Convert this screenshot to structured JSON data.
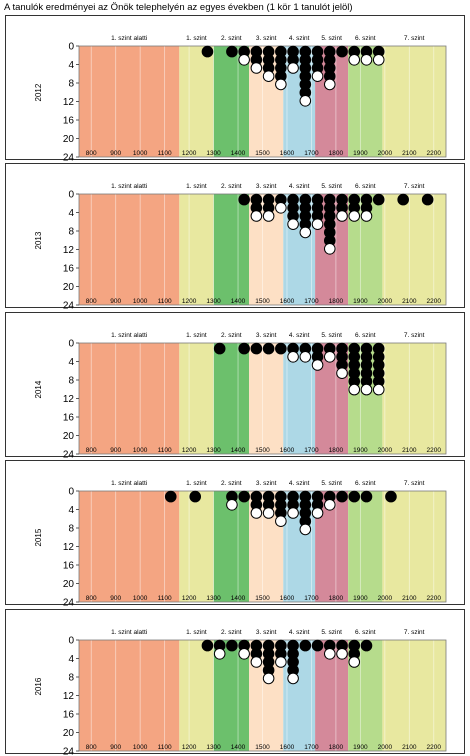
{
  "title": "A tanulók eredményei az Önök telephelyén az egyes években (1 kör 1 tanulót jelöl)",
  "chart_data": [
    {
      "type": "scatter",
      "ylabel": "2012",
      "x_ticks": [
        800,
        900,
        1000,
        1100,
        1200,
        1300,
        1400,
        1500,
        1600,
        1700,
        1800,
        1900,
        2000,
        2100,
        2200
      ],
      "y_ticks": [
        0,
        4,
        8,
        12,
        16,
        20,
        24
      ],
      "xlim": [
        750,
        2250
      ],
      "ylim": [
        0,
        24
      ],
      "y_inverted": true,
      "bands": [
        {
          "label": "1. szint alatti",
          "from": 750,
          "to": 1160,
          "color": "#f4a582"
        },
        {
          "label": "1. szint",
          "from": 1160,
          "to": 1300,
          "color": "#e8e8a0"
        },
        {
          "label": "2. szint",
          "from": 1300,
          "to": 1445,
          "color": "#6cc06c"
        },
        {
          "label": "3. szint",
          "from": 1445,
          "to": 1585,
          "color": "#fde0c5"
        },
        {
          "label": "4. szint",
          "from": 1585,
          "to": 1715,
          "color": "#add8e6"
        },
        {
          "label": "5. szint",
          "from": 1715,
          "to": 1850,
          "color": "#d4899a"
        },
        {
          "label": "6. szint",
          "from": 1850,
          "to": 1990,
          "color": "#b6dc8c"
        },
        {
          "label": "7. szint",
          "from": 1990,
          "to": 2250,
          "color": "#e8e8a0"
        }
      ],
      "columns": [
        {
          "x": 1275,
          "count": 1
        },
        {
          "x": 1375,
          "count": 1
        },
        {
          "x": 1425,
          "count": 2
        },
        {
          "x": 1475,
          "count": 3
        },
        {
          "x": 1525,
          "count": 4
        },
        {
          "x": 1575,
          "count": 5
        },
        {
          "x": 1625,
          "count": 3
        },
        {
          "x": 1675,
          "count": 7
        },
        {
          "x": 1725,
          "count": 4
        },
        {
          "x": 1775,
          "count": 5
        },
        {
          "x": 1825,
          "count": 1
        },
        {
          "x": 1875,
          "count": 2
        },
        {
          "x": 1925,
          "count": 2
        },
        {
          "x": 1975,
          "count": 2
        }
      ]
    },
    {
      "type": "scatter",
      "ylabel": "2013",
      "x_ticks": [
        800,
        900,
        1000,
        1100,
        1200,
        1300,
        1400,
        1500,
        1600,
        1700,
        1800,
        1900,
        2000,
        2100,
        2200
      ],
      "y_ticks": [
        0,
        4,
        8,
        12,
        16,
        20,
        24
      ],
      "xlim": [
        750,
        2250
      ],
      "ylim": [
        0,
        24
      ],
      "y_inverted": true,
      "bands": [
        {
          "label": "1. szint alatti",
          "from": 750,
          "to": 1160,
          "color": "#f4a582"
        },
        {
          "label": "1. szint",
          "from": 1160,
          "to": 1300,
          "color": "#e8e8a0"
        },
        {
          "label": "2. szint",
          "from": 1300,
          "to": 1445,
          "color": "#6cc06c"
        },
        {
          "label": "3. szint",
          "from": 1445,
          "to": 1585,
          "color": "#fde0c5"
        },
        {
          "label": "4. szint",
          "from": 1585,
          "to": 1715,
          "color": "#add8e6"
        },
        {
          "label": "5. szint",
          "from": 1715,
          "to": 1850,
          "color": "#d4899a"
        },
        {
          "label": "6. szint",
          "from": 1850,
          "to": 1990,
          "color": "#b6dc8c"
        },
        {
          "label": "7. szint",
          "from": 1990,
          "to": 2250,
          "color": "#e8e8a0"
        }
      ],
      "columns": [
        {
          "x": 1425,
          "count": 1
        },
        {
          "x": 1475,
          "count": 3
        },
        {
          "x": 1525,
          "count": 3
        },
        {
          "x": 1575,
          "count": 2
        },
        {
          "x": 1625,
          "count": 4
        },
        {
          "x": 1675,
          "count": 5
        },
        {
          "x": 1725,
          "count": 4
        },
        {
          "x": 1775,
          "count": 7
        },
        {
          "x": 1825,
          "count": 3
        },
        {
          "x": 1875,
          "count": 3
        },
        {
          "x": 1925,
          "count": 3
        },
        {
          "x": 1975,
          "count": 1
        },
        {
          "x": 2075,
          "count": 1
        },
        {
          "x": 2175,
          "count": 1
        }
      ]
    },
    {
      "type": "scatter",
      "ylabel": "2014",
      "x_ticks": [
        800,
        900,
        1000,
        1100,
        1200,
        1300,
        1400,
        1500,
        1600,
        1700,
        1800,
        1900,
        2000,
        2100,
        2200
      ],
      "y_ticks": [
        0,
        4,
        8,
        12,
        16,
        20,
        24
      ],
      "xlim": [
        750,
        2250
      ],
      "ylim": [
        0,
        24
      ],
      "y_inverted": true,
      "bands": [
        {
          "label": "1. szint alatti",
          "from": 750,
          "to": 1160,
          "color": "#f4a582"
        },
        {
          "label": "1. szint",
          "from": 1160,
          "to": 1300,
          "color": "#e8e8a0"
        },
        {
          "label": "2. szint",
          "from": 1300,
          "to": 1445,
          "color": "#6cc06c"
        },
        {
          "label": "3. szint",
          "from": 1445,
          "to": 1585,
          "color": "#fde0c5"
        },
        {
          "label": "4. szint",
          "from": 1585,
          "to": 1715,
          "color": "#add8e6"
        },
        {
          "label": "5. szint",
          "from": 1715,
          "to": 1850,
          "color": "#d4899a"
        },
        {
          "label": "6. szint",
          "from": 1850,
          "to": 1990,
          "color": "#b6dc8c"
        },
        {
          "label": "7. szint",
          "from": 1990,
          "to": 2250,
          "color": "#e8e8a0"
        }
      ],
      "columns": [
        {
          "x": 1325,
          "count": 1
        },
        {
          "x": 1425,
          "count": 1
        },
        {
          "x": 1475,
          "count": 1
        },
        {
          "x": 1525,
          "count": 1
        },
        {
          "x": 1575,
          "count": 1
        },
        {
          "x": 1625,
          "count": 2
        },
        {
          "x": 1675,
          "count": 2
        },
        {
          "x": 1725,
          "count": 3
        },
        {
          "x": 1775,
          "count": 2
        },
        {
          "x": 1825,
          "count": 4
        },
        {
          "x": 1875,
          "count": 6
        },
        {
          "x": 1925,
          "count": 6
        },
        {
          "x": 1975,
          "count": 6
        }
      ]
    },
    {
      "type": "scatter",
      "ylabel": "2015",
      "x_ticks": [
        800,
        900,
        1000,
        1100,
        1200,
        1300,
        1400,
        1500,
        1600,
        1700,
        1800,
        1900,
        2000,
        2100,
        2200
      ],
      "y_ticks": [
        0,
        4,
        8,
        12,
        16,
        20,
        24
      ],
      "xlim": [
        750,
        2250
      ],
      "ylim": [
        0,
        24
      ],
      "y_inverted": true,
      "bands": [
        {
          "label": "1. szint alatti",
          "from": 750,
          "to": 1160,
          "color": "#f4a582"
        },
        {
          "label": "1. szint",
          "from": 1160,
          "to": 1300,
          "color": "#e8e8a0"
        },
        {
          "label": "2. szint",
          "from": 1300,
          "to": 1445,
          "color": "#6cc06c"
        },
        {
          "label": "3. szint",
          "from": 1445,
          "to": 1585,
          "color": "#fde0c5"
        },
        {
          "label": "4. szint",
          "from": 1585,
          "to": 1715,
          "color": "#add8e6"
        },
        {
          "label": "5. szint",
          "from": 1715,
          "to": 1850,
          "color": "#d4899a"
        },
        {
          "label": "6. szint",
          "from": 1850,
          "to": 1990,
          "color": "#b6dc8c"
        },
        {
          "label": "7. szint",
          "from": 1990,
          "to": 2250,
          "color": "#e8e8a0"
        }
      ],
      "columns": [
        {
          "x": 1125,
          "count": 1
        },
        {
          "x": 1225,
          "count": 1
        },
        {
          "x": 1375,
          "count": 2
        },
        {
          "x": 1425,
          "count": 1
        },
        {
          "x": 1475,
          "count": 3
        },
        {
          "x": 1525,
          "count": 3
        },
        {
          "x": 1575,
          "count": 4
        },
        {
          "x": 1625,
          "count": 3
        },
        {
          "x": 1675,
          "count": 5
        },
        {
          "x": 1725,
          "count": 3
        },
        {
          "x": 1775,
          "count": 2
        },
        {
          "x": 1825,
          "count": 1
        },
        {
          "x": 1875,
          "count": 1
        },
        {
          "x": 1925,
          "count": 1
        },
        {
          "x": 2025,
          "count": 1
        }
      ]
    },
    {
      "type": "scatter",
      "ylabel": "2016",
      "x_ticks": [
        800,
        900,
        1000,
        1100,
        1200,
        1300,
        1400,
        1500,
        1600,
        1700,
        1800,
        1900,
        2000,
        2100,
        2200
      ],
      "y_ticks": [
        0,
        4,
        8,
        12,
        16,
        20,
        24
      ],
      "xlim": [
        750,
        2250
      ],
      "ylim": [
        0,
        24
      ],
      "y_inverted": true,
      "bands": [
        {
          "label": "1. szint alatti",
          "from": 750,
          "to": 1160,
          "color": "#f4a582"
        },
        {
          "label": "1. szint",
          "from": 1160,
          "to": 1300,
          "color": "#e8e8a0"
        },
        {
          "label": "2. szint",
          "from": 1300,
          "to": 1445,
          "color": "#6cc06c"
        },
        {
          "label": "3. szint",
          "from": 1445,
          "to": 1585,
          "color": "#fde0c5"
        },
        {
          "label": "4. szint",
          "from": 1585,
          "to": 1715,
          "color": "#add8e6"
        },
        {
          "label": "5. szint",
          "from": 1715,
          "to": 1850,
          "color": "#d4899a"
        },
        {
          "label": "6. szint",
          "from": 1850,
          "to": 1990,
          "color": "#b6dc8c"
        },
        {
          "label": "7. szint",
          "from": 1990,
          "to": 2250,
          "color": "#e8e8a0"
        }
      ],
      "columns": [
        {
          "x": 1275,
          "count": 1
        },
        {
          "x": 1325,
          "count": 2
        },
        {
          "x": 1375,
          "count": 1
        },
        {
          "x": 1425,
          "count": 2
        },
        {
          "x": 1475,
          "count": 3
        },
        {
          "x": 1525,
          "count": 5
        },
        {
          "x": 1575,
          "count": 3
        },
        {
          "x": 1625,
          "count": 5
        },
        {
          "x": 1675,
          "count": 1
        },
        {
          "x": 1725,
          "count": 1
        },
        {
          "x": 1775,
          "count": 2
        },
        {
          "x": 1825,
          "count": 2
        },
        {
          "x": 1875,
          "count": 3
        },
        {
          "x": 1925,
          "count": 1
        }
      ]
    }
  ]
}
